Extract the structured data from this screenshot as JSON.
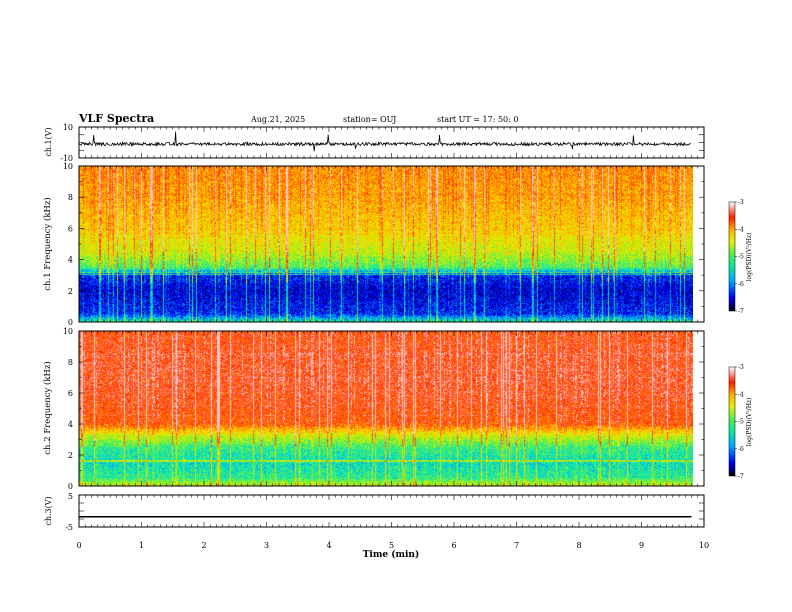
{
  "header": {
    "title": "VLF Spectra",
    "date": "Aug.21, 2025",
    "station": "station= OUJ",
    "start_ut": "start  UT =   17: 50: 0"
  },
  "colors": {
    "ink": "#000000",
    "background": "#ffffff",
    "colormap": [
      "#00007a",
      "#0000ff",
      "#0096ff",
      "#00e6c8",
      "#50f050",
      "#d2f000",
      "#ffd700",
      "#ff7800",
      "#ff2a00",
      "#ffc8c8"
    ]
  },
  "chart_data": [
    {
      "type": "line",
      "name": "ch1-waveform",
      "ylabel": "ch.1(V)",
      "xlim": [
        0,
        10
      ],
      "ylim": [
        -10,
        10
      ],
      "yticks": [
        "10",
        "-10"
      ],
      "baseline": -1,
      "noise_amplitude": 1,
      "spike_min": -6,
      "spike_max": 8,
      "data_end_x": 9.8
    },
    {
      "type": "heatmap",
      "name": "ch1-spectrogram",
      "ylabel": "ch.1 Frequency (kHz)",
      "xlim": [
        0,
        10
      ],
      "ylim": [
        0,
        10
      ],
      "yticks": [
        "0",
        "2",
        "4",
        "6",
        "8",
        "10"
      ],
      "data_end_x": 9.8,
      "colorbar": {
        "label": "log(PSD)(V²/Hz)",
        "range": [
          -7,
          -3
        ],
        "ticks": [
          "-3",
          "-4",
          "-5",
          "-6",
          "-7"
        ]
      },
      "levels_by_frequency_khz": [
        {
          "f": 0,
          "level": 0.35
        },
        {
          "f": 0.5,
          "level": 0.12
        },
        {
          "f": 1.0,
          "level": 0.1
        },
        {
          "f": 2.0,
          "level": 0.06
        },
        {
          "f": 3.0,
          "level": 0.12
        },
        {
          "f": 3.5,
          "level": 0.42
        },
        {
          "f": 4.5,
          "level": 0.55
        },
        {
          "f": 6.0,
          "level": 0.65
        },
        {
          "f": 8.0,
          "level": 0.72
        },
        {
          "f": 10.0,
          "level": 0.75
        }
      ]
    },
    {
      "type": "heatmap",
      "name": "ch2-spectrogram",
      "ylabel": "ch.2 Frequency (kHz)",
      "xlim": [
        0,
        10
      ],
      "ylim": [
        0,
        10
      ],
      "yticks": [
        "0",
        "2",
        "4",
        "6",
        "8",
        "10"
      ],
      "data_end_x": 9.8,
      "colorbar": {
        "label": "log(PSD)(V²/Hz)",
        "range": [
          -7,
          -3
        ],
        "ticks": [
          "-3",
          "-4",
          "-5",
          "-6",
          "-7"
        ]
      },
      "levels_by_frequency_khz": [
        {
          "f": 0,
          "level": 0.55
        },
        {
          "f": 0.5,
          "level": 0.38
        },
        {
          "f": 1.5,
          "level": 0.33
        },
        {
          "f": 2.5,
          "level": 0.4
        },
        {
          "f": 3.2,
          "level": 0.55
        },
        {
          "f": 4.0,
          "level": 0.82
        },
        {
          "f": 6.0,
          "level": 0.88
        },
        {
          "f": 8.0,
          "level": 0.88
        },
        {
          "f": 10.0,
          "level": 0.86
        }
      ]
    },
    {
      "type": "line",
      "name": "ch3-waveform",
      "ylabel": "ch.3(V)",
      "xlabel": "Time  (min)",
      "xlim": [
        0,
        10
      ],
      "ylim": [
        -5,
        5
      ],
      "yticks": [
        "5",
        "-5"
      ],
      "xticks": [
        "0",
        "1",
        "2",
        "3",
        "4",
        "5",
        "6",
        "7",
        "8",
        "9",
        "10"
      ],
      "value": -1.8,
      "data_end_x": 9.8
    }
  ]
}
